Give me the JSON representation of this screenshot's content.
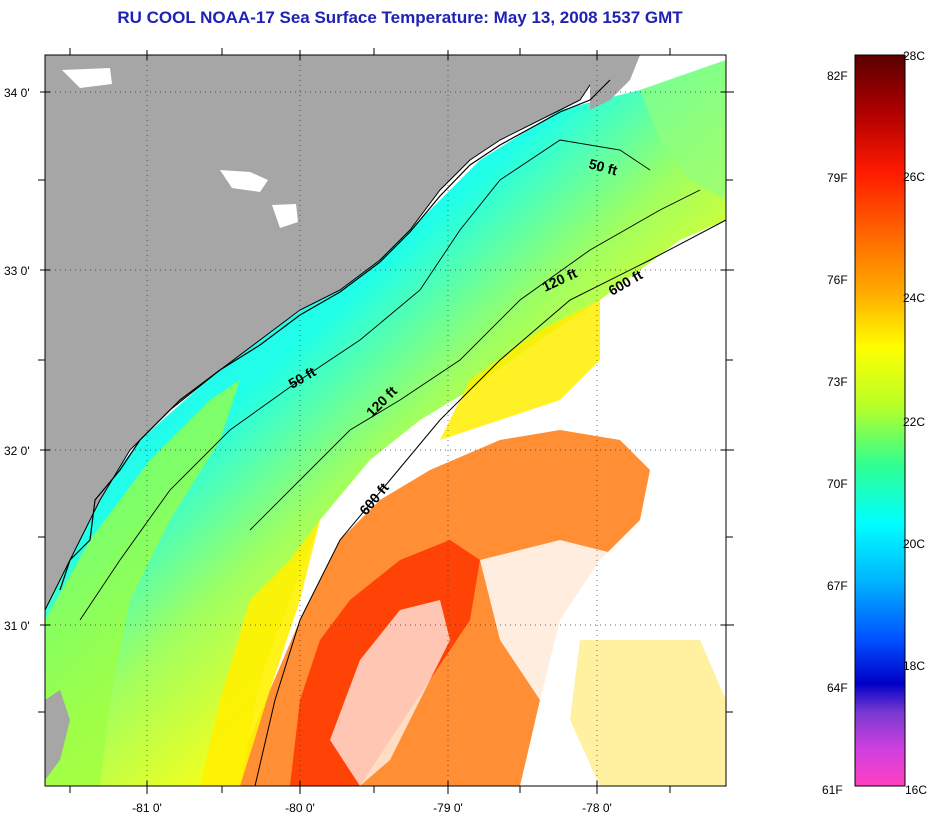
{
  "title": "RU COOL  NOAA-17  Sea Surface Temperature:  May 13, 2008 1537 GMT",
  "map": {
    "lat_labels": [
      "34 0'",
      "33 0'",
      "32 0'",
      "31 0'"
    ],
    "lon_labels": [
      "-81 0'",
      "-80 0'",
      "-79 0'",
      "-78 0'"
    ],
    "contour_labels": [
      "50 ft",
      "120 ft",
      "600 ft",
      "50 ft",
      "120 ft",
      "600 ft"
    ]
  },
  "colorbar": {
    "fahrenheit_labels": [
      "82F",
      "79F",
      "76F",
      "73F",
      "70F",
      "67F",
      "64F",
      "61F"
    ],
    "celsius_labels": [
      "28C",
      "26C",
      "24C",
      "22C",
      "20C",
      "18C",
      "16C"
    ],
    "colors": [
      "#5a0000",
      "#cc0000",
      "#ff3300",
      "#ff8800",
      "#ffd000",
      "#ffff00",
      "#a8ff30",
      "#30ffb0",
      "#00ffff",
      "#00a0ff",
      "#0040ff",
      "#0000d0",
      "#8040d0",
      "#d040e0",
      "#ff40c0"
    ]
  }
}
